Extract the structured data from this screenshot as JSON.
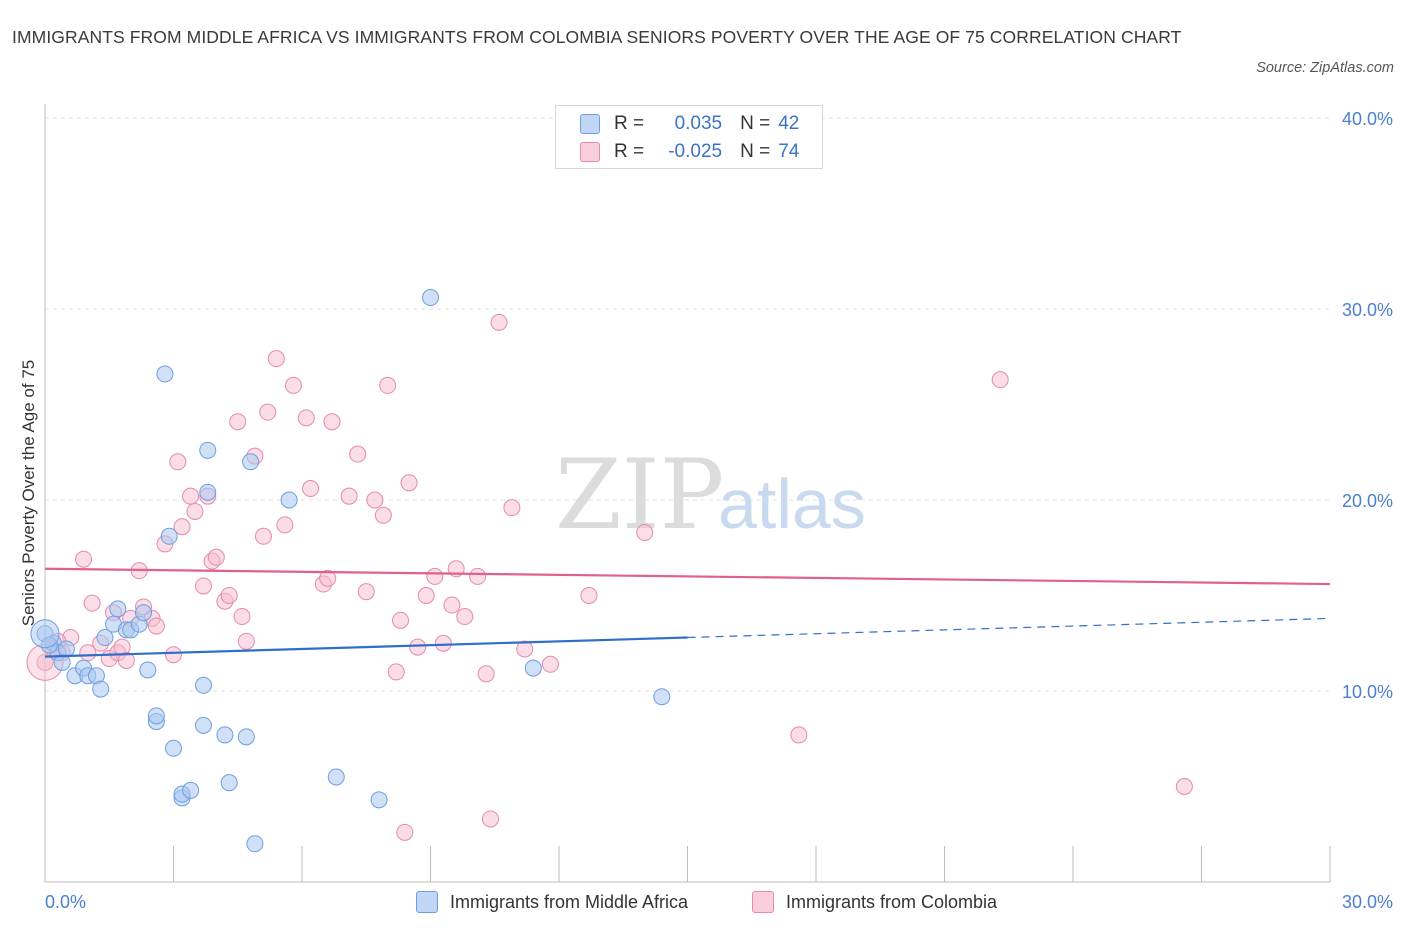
{
  "title": "IMMIGRANTS FROM MIDDLE AFRICA VS IMMIGRANTS FROM COLOMBIA SENIORS POVERTY OVER THE AGE OF 75 CORRELATION CHART",
  "source": "Source: ZipAtlas.com",
  "watermark": {
    "zip": "ZIP",
    "atlas": "atlas"
  },
  "legend": {
    "rows": [
      {
        "r_label": "R =",
        "r_value": "0.035",
        "n_label": "N =",
        "n_value": "42"
      },
      {
        "r_label": "R =",
        "r_value": "-0.025",
        "n_label": "N =",
        "n_value": "74"
      }
    ]
  },
  "bottom_legend": {
    "series1": "Immigrants from Middle Africa",
    "series2": "Immigrants from Colombia"
  },
  "colors": {
    "blue_fill": "#a9c8f0",
    "blue_stroke": "#6e9ee0",
    "blue_line": "#2f6fc9",
    "pink_fill": "#f6bcd0",
    "pink_stroke": "#e58aab",
    "pink_line": "#e0608c",
    "grid": "#e2e2e2",
    "tick_text": "#4a7fd0"
  },
  "chart_data": {
    "type": "scatter",
    "title": "IMMIGRANTS FROM MIDDLE AFRICA VS IMMIGRANTS FROM COLOMBIA SENIORS POVERTY OVER THE AGE OF 75 CORRELATION CHART",
    "xlabel": "",
    "ylabel": "Seniors Poverty Over the Age of 75",
    "xlim": [
      0,
      30
    ],
    "ylim": [
      0,
      40
    ],
    "x_tick_labels": [
      "0.0%",
      "30.0%"
    ],
    "y_ticks": [
      10,
      20,
      30,
      40
    ],
    "y_tick_labels": [
      "10.0%",
      "20.0%",
      "30.0%",
      "40.0%"
    ],
    "grid": true,
    "series": [
      {
        "name": "Immigrants from Middle Africa",
        "R": 0.035,
        "N": 42,
        "trend": {
          "x0": 0,
          "y0": 11.8,
          "x1": 15,
          "y1": 12.8,
          "dashed_to_x": 30,
          "dashed_to_y": 13.8
        },
        "points": [
          [
            0.0,
            13.0
          ],
          [
            0.2,
            12.5
          ],
          [
            0.3,
            12.0
          ],
          [
            0.4,
            11.5
          ],
          [
            0.5,
            12.2
          ],
          [
            0.7,
            10.8
          ],
          [
            0.9,
            11.2
          ],
          [
            1.0,
            10.8
          ],
          [
            1.2,
            10.8
          ],
          [
            1.3,
            10.1
          ],
          [
            1.4,
            12.8
          ],
          [
            1.6,
            13.5
          ],
          [
            1.7,
            14.3
          ],
          [
            1.9,
            13.2
          ],
          [
            2.0,
            13.2
          ],
          [
            2.2,
            13.5
          ],
          [
            2.3,
            14.1
          ],
          [
            2.4,
            11.1
          ],
          [
            2.6,
            8.4
          ],
          [
            2.6,
            8.7
          ],
          [
            2.8,
            26.6
          ],
          [
            2.9,
            18.1
          ],
          [
            3.0,
            7.0
          ],
          [
            3.2,
            4.4
          ],
          [
            3.2,
            4.6
          ],
          [
            3.4,
            4.8
          ],
          [
            3.7,
            8.2
          ],
          [
            3.7,
            10.3
          ],
          [
            3.8,
            22.6
          ],
          [
            3.8,
            20.4
          ],
          [
            4.2,
            7.7
          ],
          [
            4.3,
            5.2
          ],
          [
            4.7,
            7.6
          ],
          [
            4.8,
            22.0
          ],
          [
            4.9,
            2.0
          ],
          [
            5.7,
            20.0
          ],
          [
            6.8,
            5.5
          ],
          [
            7.8,
            4.3
          ],
          [
            9.0,
            30.6
          ],
          [
            11.4,
            11.2
          ],
          [
            14.4,
            9.7
          ],
          [
            0.1,
            12.4
          ]
        ]
      },
      {
        "name": "Immigrants from Colombia",
        "R": -0.025,
        "N": 74,
        "trend": {
          "x0": 0,
          "y0": 16.4,
          "x1": 30,
          "y1": 15.6
        },
        "points": [
          [
            0.0,
            11.5
          ],
          [
            0.2,
            12.2
          ],
          [
            0.4,
            12.0
          ],
          [
            0.6,
            12.8
          ],
          [
            0.9,
            16.9
          ],
          [
            1.1,
            14.6
          ],
          [
            1.3,
            12.5
          ],
          [
            1.5,
            11.7
          ],
          [
            1.6,
            14.1
          ],
          [
            1.7,
            12.0
          ],
          [
            1.8,
            12.3
          ],
          [
            1.9,
            11.6
          ],
          [
            2.0,
            13.8
          ],
          [
            2.2,
            16.3
          ],
          [
            2.3,
            14.4
          ],
          [
            2.5,
            13.8
          ],
          [
            2.6,
            13.4
          ],
          [
            2.8,
            17.7
          ],
          [
            3.0,
            11.9
          ],
          [
            3.1,
            22.0
          ],
          [
            3.2,
            18.6
          ],
          [
            3.4,
            20.2
          ],
          [
            3.5,
            19.4
          ],
          [
            3.7,
            15.5
          ],
          [
            3.8,
            20.2
          ],
          [
            3.9,
            16.8
          ],
          [
            4.0,
            17.0
          ],
          [
            4.2,
            14.7
          ],
          [
            4.3,
            15.0
          ],
          [
            4.5,
            24.1
          ],
          [
            4.6,
            13.9
          ],
          [
            4.7,
            12.6
          ],
          [
            4.9,
            22.3
          ],
          [
            5.1,
            18.1
          ],
          [
            5.2,
            24.6
          ],
          [
            5.4,
            27.4
          ],
          [
            5.6,
            18.7
          ],
          [
            5.8,
            26.0
          ],
          [
            6.1,
            24.3
          ],
          [
            6.2,
            20.6
          ],
          [
            6.5,
            15.6
          ],
          [
            6.6,
            15.9
          ],
          [
            6.7,
            24.1
          ],
          [
            7.1,
            20.2
          ],
          [
            7.3,
            22.4
          ],
          [
            7.5,
            15.2
          ],
          [
            7.7,
            20.0
          ],
          [
            7.9,
            19.2
          ],
          [
            8.0,
            26.0
          ],
          [
            8.2,
            11.0
          ],
          [
            8.3,
            13.7
          ],
          [
            8.4,
            2.6
          ],
          [
            8.5,
            20.9
          ],
          [
            8.7,
            12.3
          ],
          [
            8.9,
            15.0
          ],
          [
            9.1,
            16.0
          ],
          [
            9.3,
            12.5
          ],
          [
            9.5,
            14.5
          ],
          [
            9.6,
            16.4
          ],
          [
            9.8,
            13.9
          ],
          [
            10.1,
            16.0
          ],
          [
            10.3,
            10.9
          ],
          [
            10.4,
            3.3
          ],
          [
            10.6,
            29.3
          ],
          [
            10.9,
            19.6
          ],
          [
            11.2,
            12.2
          ],
          [
            11.8,
            11.4
          ],
          [
            12.7,
            15.0
          ],
          [
            14.0,
            18.3
          ],
          [
            17.6,
            7.7
          ],
          [
            22.3,
            26.3
          ],
          [
            26.6,
            5.0
          ],
          [
            0.3,
            12.6
          ],
          [
            1.0,
            12.0
          ]
        ]
      }
    ]
  }
}
